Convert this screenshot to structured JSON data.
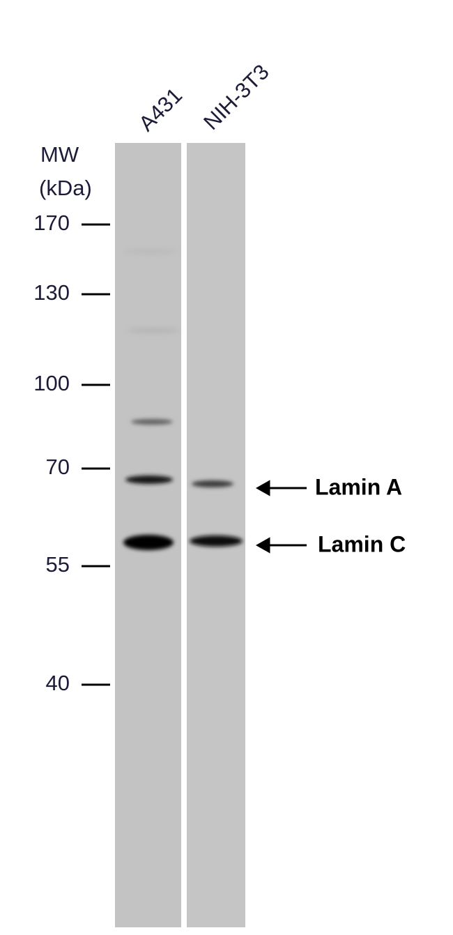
{
  "lanes": [
    "A431",
    "NIH-3T3"
  ],
  "mw_label": [
    "MW",
    "(kDa)"
  ],
  "markers": [
    170,
    130,
    100,
    70,
    55,
    40
  ],
  "bands": [
    "Lamin A",
    "Lamin C"
  ]
}
